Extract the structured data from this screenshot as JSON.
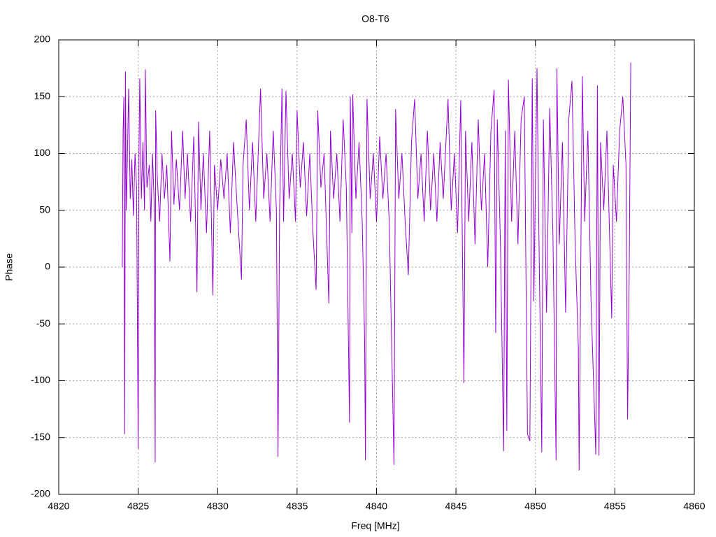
{
  "chart_data": {
    "type": "line",
    "title": "O8-T6",
    "x_label": "Freq [MHz]",
    "y_label": "Phase",
    "color": "#9400d3",
    "grid": true,
    "xlim": [
      4820,
      4860
    ],
    "xticks": [
      4820,
      4825,
      4830,
      4835,
      4840,
      4845,
      4850,
      4855,
      4860
    ],
    "ylim": [
      -200,
      200
    ],
    "yticks": [
      -200,
      -150,
      -100,
      -50,
      0,
      50,
      100,
      150,
      200
    ],
    "x": [
      4824.0,
      4824.05,
      4824.1,
      4824.15,
      4824.2,
      4824.25,
      4824.3,
      4824.4,
      4824.5,
      4824.6,
      4824.7,
      4824.8,
      4824.9,
      4825.0,
      4825.05,
      4825.1,
      4825.2,
      4825.3,
      4825.4,
      4825.45,
      4825.55,
      4825.7,
      4825.8,
      4825.9,
      4826.0,
      4826.07,
      4826.1,
      4826.2,
      4826.35,
      4826.5,
      4826.65,
      4826.8,
      4827.0,
      4827.1,
      4827.25,
      4827.4,
      4827.6,
      4827.8,
      4827.95,
      4828.1,
      4828.3,
      4828.5,
      4828.7,
      4828.8,
      4828.95,
      4829.1,
      4829.3,
      4829.5,
      4829.7,
      4829.8,
      4830.0,
      4830.2,
      4830.4,
      4830.6,
      4830.8,
      4831.0,
      4831.2,
      4831.5,
      4831.6,
      4831.8,
      4832.0,
      4832.2,
      4832.4,
      4832.7,
      4832.9,
      4833.1,
      4833.3,
      4833.5,
      4833.7,
      4833.8,
      4833.9,
      4834.05,
      4834.15,
      4834.3,
      4834.5,
      4834.7,
      4834.9,
      4835.0,
      4835.2,
      4835.4,
      4835.6,
      4835.8,
      4836.0,
      4836.2,
      4836.3,
      4836.5,
      4836.7,
      4837.0,
      4837.1,
      4837.3,
      4837.5,
      4837.7,
      4837.9,
      4838.1,
      4838.3,
      4838.35,
      4838.45,
      4838.5,
      4838.7,
      4838.9,
      4839.1,
      4839.25,
      4839.3,
      4839.4,
      4839.6,
      4839.8,
      4840.0,
      4840.2,
      4840.4,
      4840.6,
      4840.8,
      4841.1,
      4841.2,
      4841.4,
      4841.6,
      4841.8,
      4842.0,
      4842.2,
      4842.4,
      4842.6,
      4842.8,
      4843.0,
      4843.2,
      4843.4,
      4843.6,
      4843.8,
      4844.0,
      4844.2,
      4844.5,
      4844.7,
      4844.9,
      4845.1,
      4845.3,
      4845.5,
      4845.6,
      4845.8,
      4846.0,
      4846.2,
      4846.4,
      4846.6,
      4846.8,
      4847.0,
      4847.2,
      4847.4,
      4847.5,
      4847.6,
      4847.8,
      4848.0,
      4848.1,
      4848.2,
      4848.3,
      4848.5,
      4848.7,
      4848.9,
      4849.1,
      4849.3,
      4849.5,
      4849.65,
      4849.8,
      4849.9,
      4850.1,
      4850.2,
      4850.4,
      4850.5,
      4850.7,
      4850.9,
      4851.1,
      4851.3,
      4851.35,
      4851.5,
      4851.7,
      4851.9,
      4852.1,
      4852.3,
      4852.5,
      4852.7,
      4852.75,
      4852.95,
      4853.1,
      4853.3,
      4853.5,
      4853.8,
      4853.9,
      4854.0,
      4854.1,
      4854.3,
      4854.5,
      4854.8,
      4854.9,
      4855.1,
      4855.3,
      4855.5,
      4855.7,
      4855.8,
      4855.9,
      4856.0
    ],
    "values": [
      0,
      120,
      150,
      -147,
      172,
      50,
      80,
      157,
      60,
      95,
      45,
      100,
      70,
      -160,
      100,
      166,
      60,
      110,
      50,
      174,
      70,
      90,
      40,
      100,
      60,
      -172,
      138,
      80,
      40,
      100,
      60,
      90,
      5,
      120,
      55,
      95,
      50,
      120,
      60,
      100,
      40,
      115,
      -22,
      128,
      50,
      100,
      30,
      120,
      -25,
      90,
      50,
      95,
      60,
      100,
      30,
      110,
      60,
      -11,
      90,
      130,
      50,
      110,
      40,
      157,
      60,
      100,
      40,
      120,
      50,
      -167,
      50,
      157,
      40,
      155,
      60,
      100,
      40,
      138,
      70,
      110,
      45,
      100,
      30,
      -20,
      138,
      70,
      100,
      -32,
      120,
      60,
      100,
      40,
      130,
      70,
      -137,
      150,
      30,
      152,
      60,
      110,
      40,
      -64,
      -170,
      148,
      60,
      100,
      40,
      115,
      60,
      100,
      40,
      -174,
      139,
      60,
      100,
      40,
      -7,
      110,
      148,
      60,
      100,
      40,
      120,
      50,
      100,
      40,
      110,
      60,
      148,
      50,
      100,
      30,
      147,
      -102,
      120,
      40,
      110,
      20,
      130,
      50,
      100,
      0,
      120,
      156,
      -58,
      130,
      20,
      -162,
      120,
      -144,
      165,
      40,
      120,
      20,
      130,
      150,
      -147,
      -153,
      166,
      -30,
      175,
      50,
      -163,
      130,
      -40,
      140,
      30,
      -170,
      175,
      20,
      110,
      -40,
      130,
      164,
      20,
      -70,
      -179,
      168,
      40,
      120,
      -30,
      -165,
      160,
      -166,
      110,
      50,
      120,
      -45,
      90,
      40,
      120,
      150,
      90,
      -134,
      -10,
      180
    ]
  }
}
